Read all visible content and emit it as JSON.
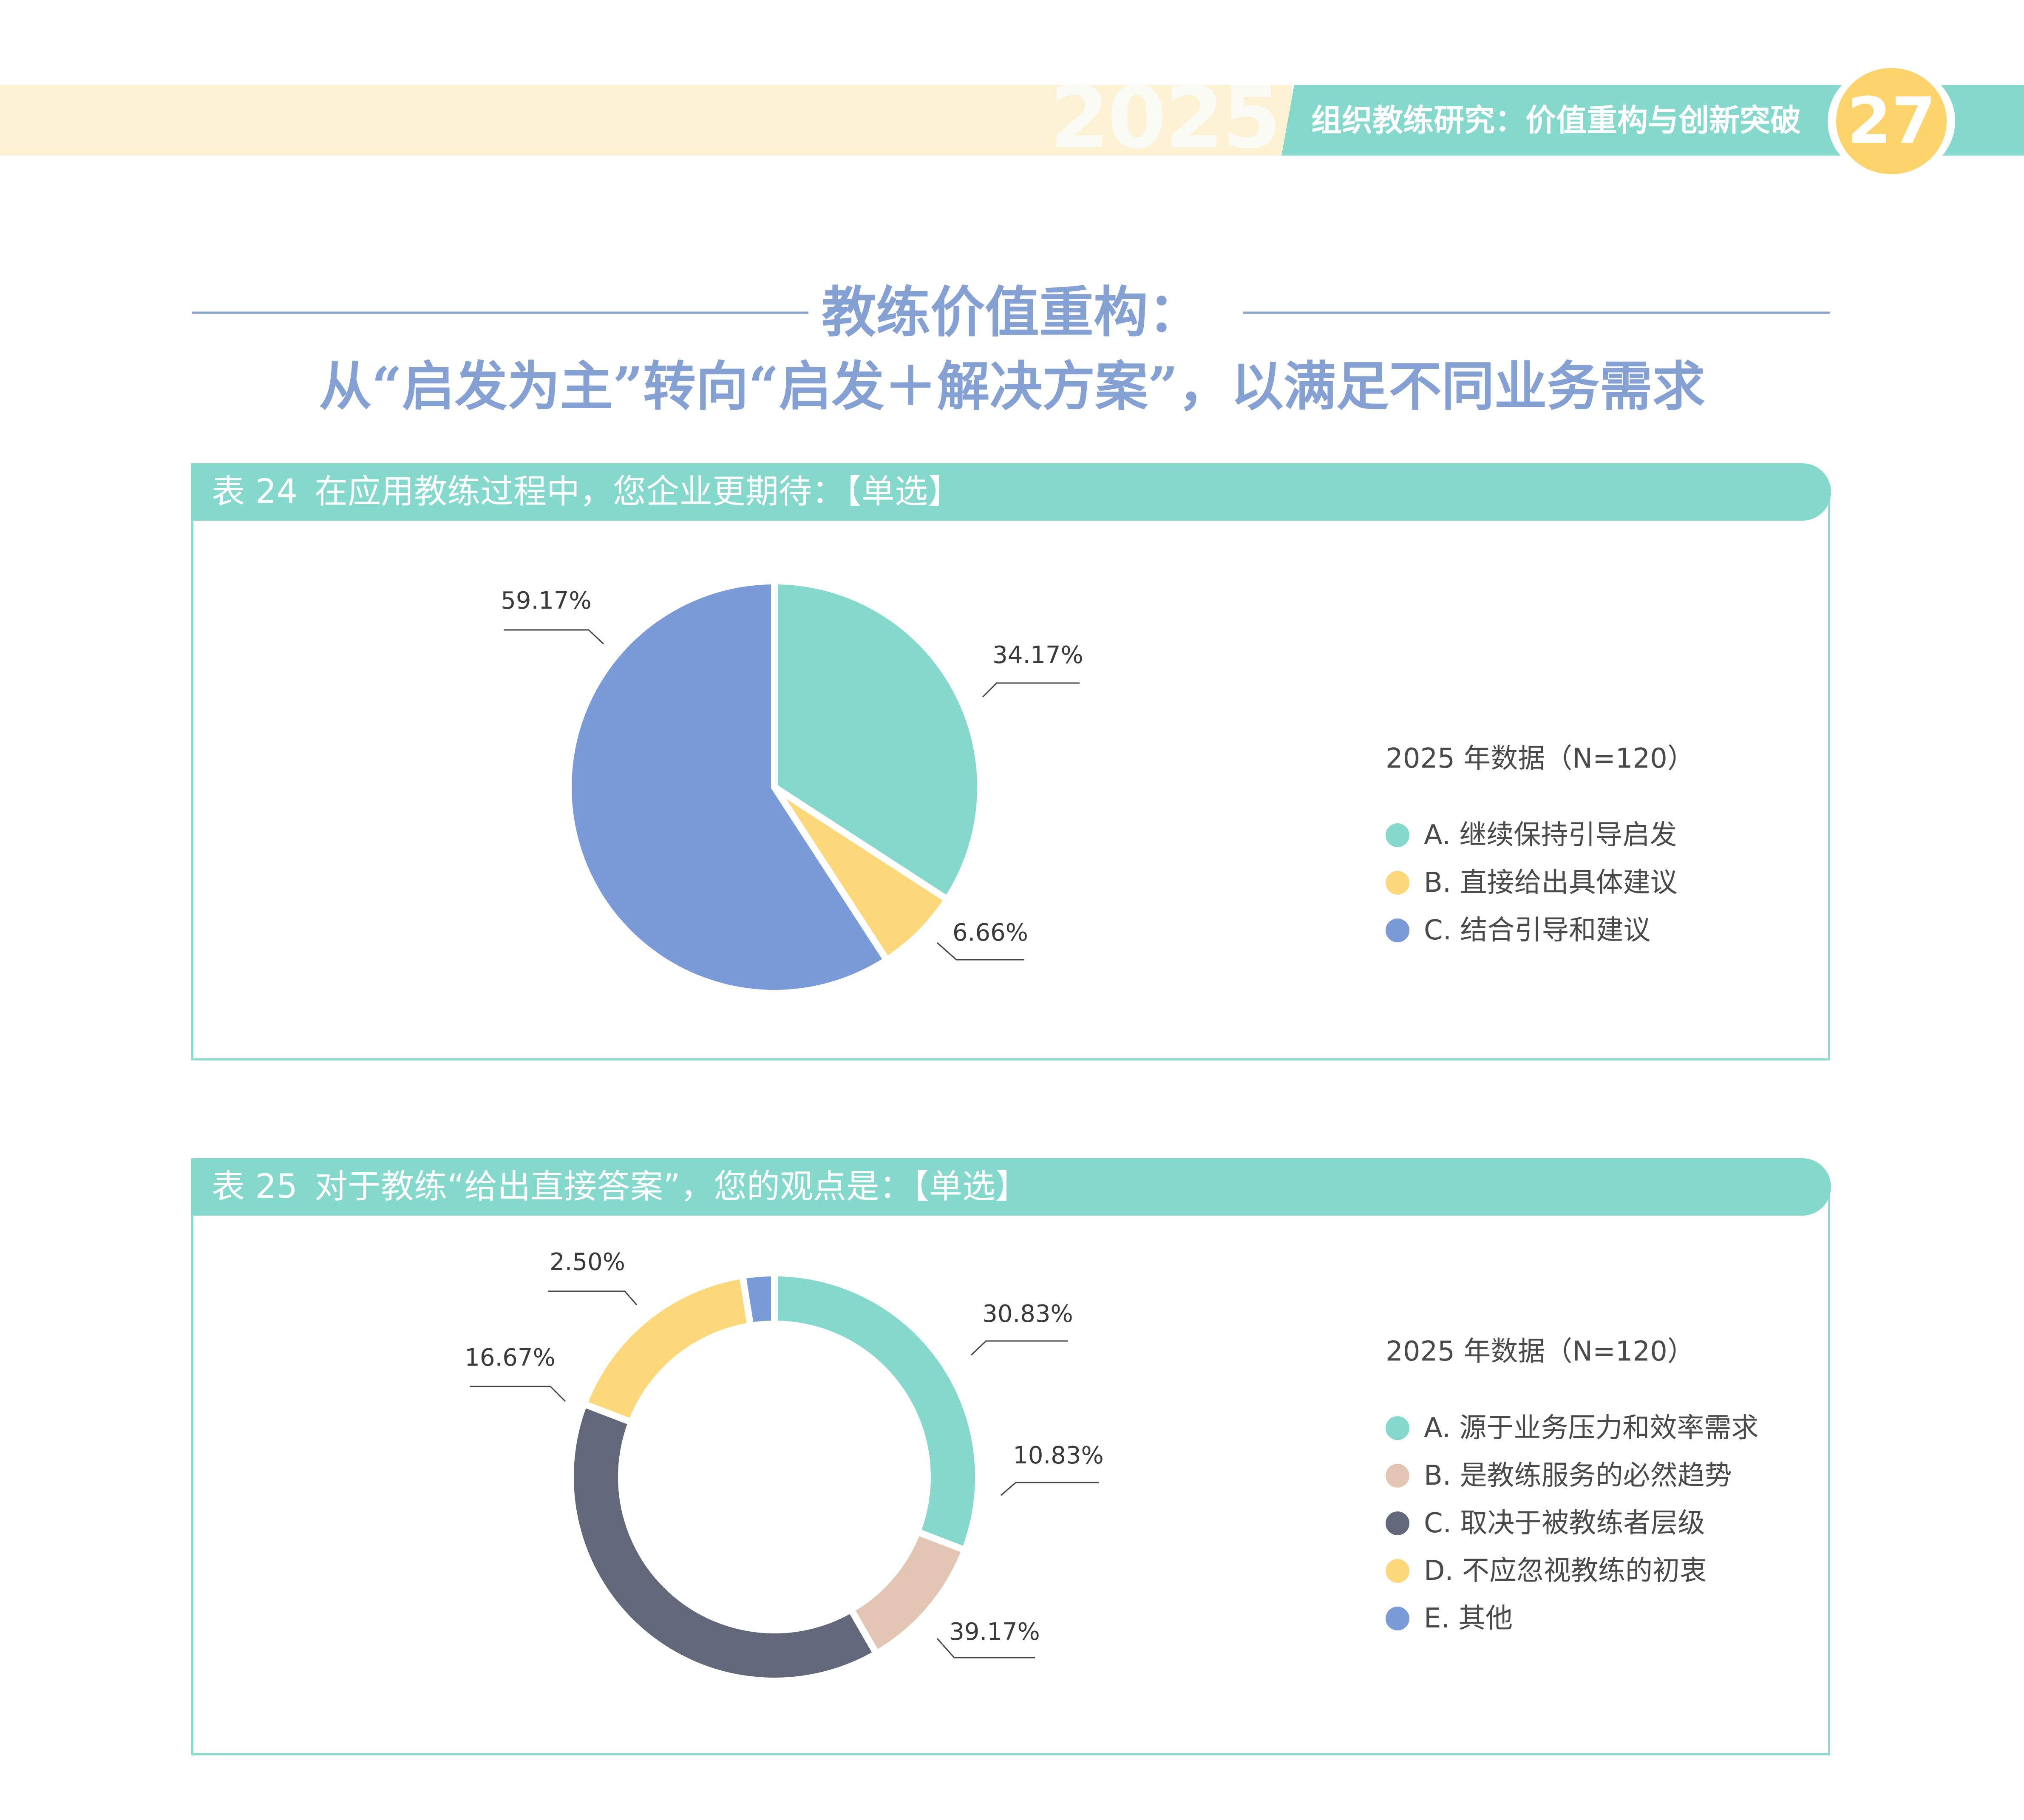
{
  "header": {
    "year": "2025",
    "title": "组织教练研究：价值重构与创新突破",
    "page_number": "27"
  },
  "section": {
    "title_line1": "教练价值重构：",
    "title_line2": "从“启发为主”转向“启发＋解决方案”，以满足不同业务需求"
  },
  "colors": {
    "teal": "#85d8cc",
    "yellow": "#fdd87a",
    "blue": "#7a9ad8",
    "beige": "#e2c6b3",
    "slate": "#626879"
  },
  "chart_data": [
    {
      "type": "pie",
      "table_number": "表 24",
      "title": "在应用教练过程中，您企业更期待：【单选】",
      "legend_title": "2025 年数据（N=120）",
      "categories": [
        "A. 继续保持引导启发",
        "B. 直接给出具体建议",
        "C. 结合引导和建议"
      ],
      "values": [
        34.17,
        6.66,
        59.17
      ],
      "labels": [
        "34.17%",
        "6.66%",
        "59.17%"
      ],
      "colors": [
        "#85d8cc",
        "#fdd87a",
        "#7a9ad8"
      ]
    },
    {
      "type": "pie",
      "variant": "donut",
      "table_number": "表 25",
      "title": "对于教练“给出直接答案”，您的观点是：【单选】",
      "legend_title": "2025 年数据（N=120）",
      "categories": [
        "A. 源于业务压力和效率需求",
        "B. 是教练服务的必然趋势",
        "C. 取决于被教练者层级",
        "D. 不应忽视教练的初衷",
        "E. 其他"
      ],
      "values": [
        30.83,
        10.83,
        39.17,
        16.67,
        2.5
      ],
      "labels": [
        "30.83%",
        "10.83%",
        "39.17%",
        "16.67%",
        "2.50%"
      ],
      "colors": [
        "#85d8cc",
        "#e2c6b3",
        "#626879",
        "#fdd87a",
        "#7a9ad8"
      ]
    }
  ]
}
